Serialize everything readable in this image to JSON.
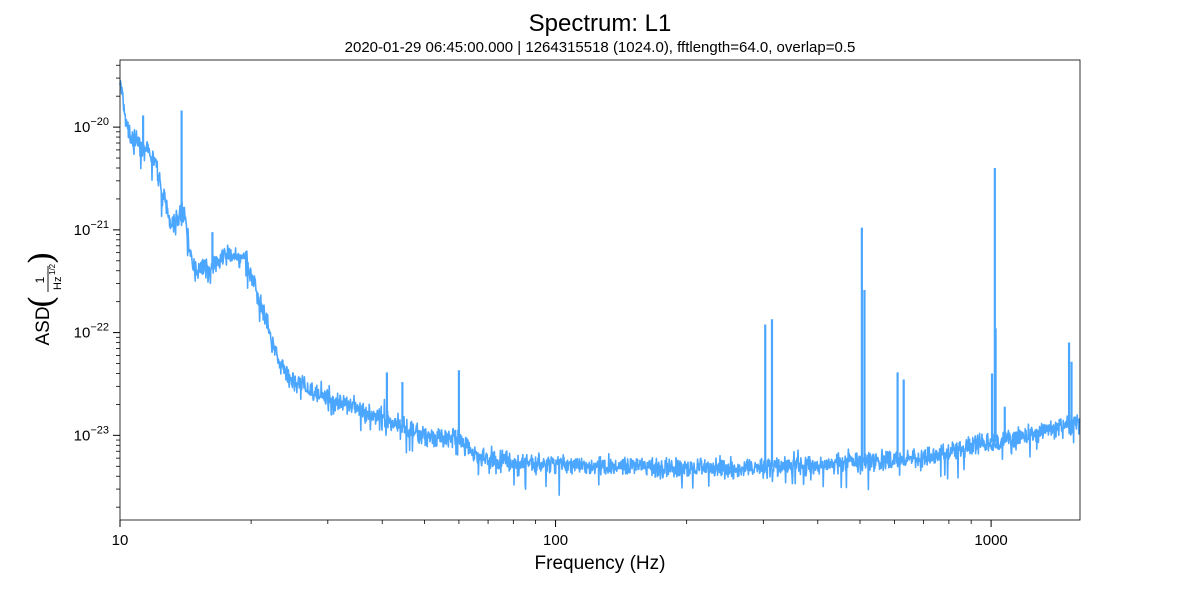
{
  "chart_data": {
    "type": "line",
    "title": "Spectrum: L1",
    "subtitle": "2020-01-29 06:45:00.000 | 1264315518 (1024.0), fftlength=64.0, overlap=0.5",
    "xlabel": "Frequency (Hz)",
    "ylabel": {
      "prefix": "ASD",
      "numerator": "1",
      "denominator": "Hz",
      "exponent": "1/2"
    },
    "x_scale": "log",
    "y_scale": "log",
    "xlim": [
      10,
      1600
    ],
    "ylim": [
      1.5e-24,
      4.5e-20
    ],
    "x_ticks": [
      {
        "value": 10,
        "label": "10"
      },
      {
        "value": 100,
        "label": "100"
      },
      {
        "value": 1000,
        "label": "1000"
      }
    ],
    "y_ticks": [
      {
        "value": 1e-20,
        "base": "10",
        "exp": "−20"
      },
      {
        "value": 1e-21,
        "base": "10",
        "exp": "−21"
      },
      {
        "value": 1e-22,
        "base": "10",
        "exp": "−22"
      },
      {
        "value": 1e-23,
        "base": "10",
        "exp": "−23"
      }
    ],
    "grid": false,
    "line_color": "#4ba6ff",
    "series": [
      {
        "x": [
          10,
          10.3,
          10.6,
          11,
          11.5,
          12,
          12.5,
          13,
          13.5,
          13.9,
          14.2,
          14.6,
          15,
          15.5,
          16,
          17,
          18,
          19,
          19.5,
          20,
          21,
          22,
          23,
          24,
          25,
          27,
          30,
          35,
          40,
          45,
          50,
          55,
          60,
          65,
          70,
          80,
          100,
          130,
          150,
          200,
          250,
          300,
          400,
          500,
          600,
          700,
          800,
          900,
          1000,
          1200,
          1400,
          1600
        ],
        "y": [
          2.8e-20,
          1.1e-20,
          7.8e-21,
          7e-21,
          5.8e-21,
          4.8e-21,
          2.4e-21,
          1.25e-21,
          1.15e-21,
          1.6e-21,
          1.2e-21,
          4.5e-22,
          4.1e-22,
          4.5e-22,
          4.2e-22,
          5.3e-22,
          5.8e-22,
          5.3e-22,
          4.8e-22,
          3.6e-22,
          2e-22,
          1e-22,
          5.5e-23,
          3.9e-23,
          3.4e-23,
          2.8e-23,
          2.3e-23,
          1.8e-23,
          1.4e-23,
          1.2e-23,
          1e-23,
          9.5e-24,
          9e-24,
          6.5e-24,
          5.8e-24,
          5.5e-24,
          5.2e-24,
          5e-24,
          4.9e-24,
          4.8e-24,
          4.8e-24,
          4.9e-24,
          5.1e-24,
          5.4e-24,
          5.8e-24,
          6.2e-24,
          6.9e-24,
          7.8e-24,
          8.5e-24,
          1e-23,
          1.15e-23,
          1.3e-23
        ],
        "lines": [
          {
            "x": 11.3,
            "y": 1.3e-20
          },
          {
            "x": 13.85,
            "y": 1.45e-20
          },
          {
            "x": 16.3,
            "y": 9.5e-22
          },
          {
            "x": 41,
            "y": 4.1e-23
          },
          {
            "x": 44.5,
            "y": 3.3e-23
          },
          {
            "x": 60,
            "y": 4.3e-23
          },
          {
            "x": 303,
            "y": 1.2e-22
          },
          {
            "x": 314,
            "y": 1.35e-22
          },
          {
            "x": 505,
            "y": 1.05e-21
          },
          {
            "x": 512,
            "y": 2.6e-22
          },
          {
            "x": 610,
            "y": 4.1e-23
          },
          {
            "x": 630,
            "y": 3.5e-23
          },
          {
            "x": 1005,
            "y": 4e-23
          },
          {
            "x": 1020,
            "y": 4e-21
          },
          {
            "x": 1024,
            "y": 1.1e-22
          },
          {
            "x": 1075,
            "y": 1.9e-23
          },
          {
            "x": 1510,
            "y": 8e-23
          },
          {
            "x": 1530,
            "y": 5.2e-23
          }
        ]
      }
    ]
  }
}
